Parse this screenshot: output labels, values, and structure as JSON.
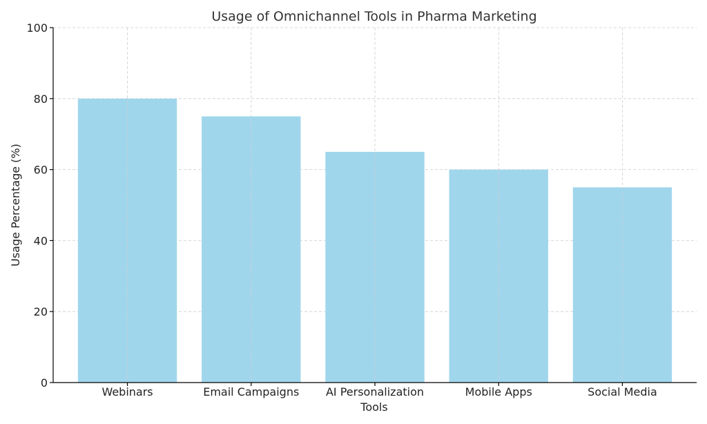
{
  "chart_data": {
    "type": "bar",
    "title": "Usage of Omnichannel Tools in Pharma Marketing",
    "xlabel": "Tools",
    "ylabel": "Usage Percentage (%)",
    "categories": [
      "Webinars",
      "Email Campaigns",
      "AI Personalization",
      "Mobile Apps",
      "Social Media"
    ],
    "values": [
      80,
      75,
      65,
      60,
      55
    ],
    "ylim": [
      0,
      100
    ],
    "yticks": [
      "0",
      "20",
      "40",
      "60",
      "80",
      "100"
    ],
    "grid": true,
    "bar_color": "#a0d6ec"
  }
}
